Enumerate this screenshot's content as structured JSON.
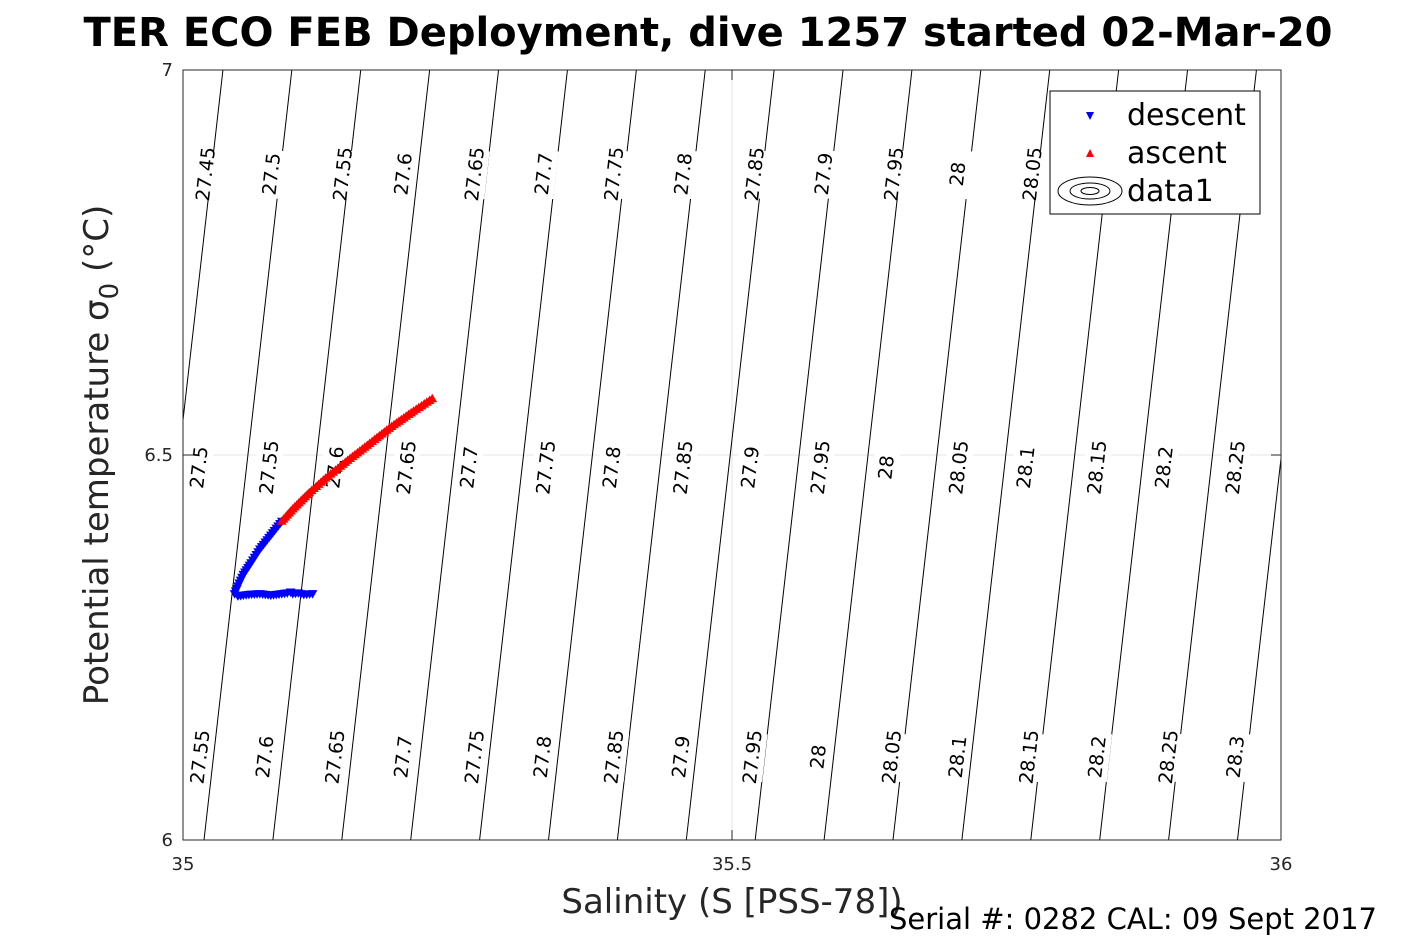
{
  "title": "TER ECO FEB Deployment, dive 1257 started 02-Mar-20",
  "footer": "Serial #: 0282  CAL: 09 Sept 2017",
  "chart_data": {
    "type": "scatter",
    "xlabel": "Salinity (S [PSS-78])",
    "ylabel_main": "Potential temperature σ",
    "ylabel_sub": "0",
    "ylabel_unit": " (°C)",
    "xlim": [
      35,
      36
    ],
    "ylim": [
      6,
      7
    ],
    "xticks": [
      35,
      35.5,
      36
    ],
    "yticks": [
      6,
      6.5,
      7
    ],
    "xtick_labels": [
      "35",
      "35.5",
      "36"
    ],
    "ytick_labels": [
      "6",
      "6.5",
      "7"
    ],
    "grid": true,
    "legend_position": "top-right",
    "series": [
      {
        "name": "descent",
        "color": "#0000ff",
        "marker": "triangle-down",
        "x": [
          35.118,
          35.11,
          35.105,
          35.1,
          35.098,
          35.095,
          35.09,
          35.08,
          35.07,
          35.06,
          35.05,
          35.047,
          35.05,
          35.055,
          35.062,
          35.07,
          35.08,
          35.09
        ],
        "y": [
          6.32,
          6.319,
          6.321,
          6.32,
          6.322,
          6.321,
          6.32,
          6.318,
          6.32,
          6.319,
          6.317,
          6.32,
          6.33,
          6.345,
          6.36,
          6.378,
          6.396,
          6.414
        ]
      },
      {
        "name": "ascent",
        "color": "#ff0000",
        "marker": "triangle-up",
        "x": [
          35.09,
          35.1,
          35.115,
          35.13,
          35.15,
          35.17,
          35.19,
          35.21,
          35.227
        ],
        "y": [
          6.414,
          6.43,
          6.451,
          6.47,
          6.493,
          6.515,
          6.537,
          6.557,
          6.573
        ]
      },
      {
        "name": "data1",
        "type": "contour",
        "color": "#000000",
        "levels": [
          27.45,
          27.5,
          27.55,
          27.6,
          27.65,
          27.7,
          27.75,
          27.8,
          27.85,
          27.9,
          27.95,
          28,
          28.05,
          28.1,
          28.15,
          28.2,
          28.25,
          28.3
        ],
        "labels_top": [
          {
            "label": "27.45",
            "x": 35.02,
            "y": 6.865
          },
          {
            "label": "27.5",
            "x": 35.08,
            "y": 6.865
          },
          {
            "label": "27.55",
            "x": 35.145,
            "y": 6.865
          },
          {
            "label": "27.6",
            "x": 35.2,
            "y": 6.865
          },
          {
            "label": "27.65",
            "x": 35.265,
            "y": 6.865
          },
          {
            "label": "27.7",
            "x": 35.328,
            "y": 6.865
          },
          {
            "label": "27.75",
            "x": 35.392,
            "y": 6.865
          },
          {
            "label": "27.8",
            "x": 35.455,
            "y": 6.865
          },
          {
            "label": "27.85",
            "x": 35.52,
            "y": 6.865
          },
          {
            "label": "27.9",
            "x": 35.583,
            "y": 6.865
          },
          {
            "label": "27.95",
            "x": 35.647,
            "y": 6.865
          },
          {
            "label": "28",
            "x": 35.705,
            "y": 6.865
          },
          {
            "label": "28.05",
            "x": 35.773,
            "y": 6.865
          }
        ],
        "labels_mid": [
          {
            "label": "27.5",
            "x": 35.014,
            "y": 6.484
          },
          {
            "label": "27.55",
            "x": 35.078,
            "y": 6.484
          },
          {
            "label": "27.6",
            "x": 35.138,
            "y": 6.484
          },
          {
            "label": "27.65",
            "x": 35.203,
            "y": 6.484
          },
          {
            "label": "27.7",
            "x": 35.26,
            "y": 6.484
          },
          {
            "label": "27.75",
            "x": 35.33,
            "y": 6.484
          },
          {
            "label": "27.8",
            "x": 35.39,
            "y": 6.484
          },
          {
            "label": "27.85",
            "x": 35.455,
            "y": 6.484
          },
          {
            "label": "27.9",
            "x": 35.516,
            "y": 6.484
          },
          {
            "label": "27.95",
            "x": 35.58,
            "y": 6.484
          },
          {
            "label": "28",
            "x": 35.64,
            "y": 6.484
          },
          {
            "label": "28.05",
            "x": 35.706,
            "y": 6.484
          },
          {
            "label": "28.1",
            "x": 35.767,
            "y": 6.484
          },
          {
            "label": "28.15",
            "x": 35.832,
            "y": 6.484
          },
          {
            "label": "28.2",
            "x": 35.893,
            "y": 6.484
          },
          {
            "label": "28.25",
            "x": 35.958,
            "y": 6.484
          }
        ],
        "labels_bottom": [
          {
            "label": "27.55",
            "x": 35.015,
            "y": 6.108
          },
          {
            "label": "27.6",
            "x": 35.074,
            "y": 6.108
          },
          {
            "label": "27.65",
            "x": 35.138,
            "y": 6.108
          },
          {
            "label": "27.7",
            "x": 35.2,
            "y": 6.108
          },
          {
            "label": "27.75",
            "x": 35.265,
            "y": 6.108
          },
          {
            "label": "27.8",
            "x": 35.327,
            "y": 6.108
          },
          {
            "label": "27.85",
            "x": 35.392,
            "y": 6.108
          },
          {
            "label": "27.9",
            "x": 35.453,
            "y": 6.108
          },
          {
            "label": "27.95",
            "x": 35.518,
            "y": 6.108
          },
          {
            "label": "28",
            "x": 35.578,
            "y": 6.108
          },
          {
            "label": "28.05",
            "x": 35.645,
            "y": 6.108
          },
          {
            "label": "28.1",
            "x": 35.705,
            "y": 6.108
          },
          {
            "label": "28.15",
            "x": 35.77,
            "y": 6.108
          },
          {
            "label": "28.2",
            "x": 35.832,
            "y": 6.108
          },
          {
            "label": "28.25",
            "x": 35.897,
            "y": 6.108
          },
          {
            "label": "28.3",
            "x": 35.958,
            "y": 6.108
          }
        ]
      }
    ]
  }
}
